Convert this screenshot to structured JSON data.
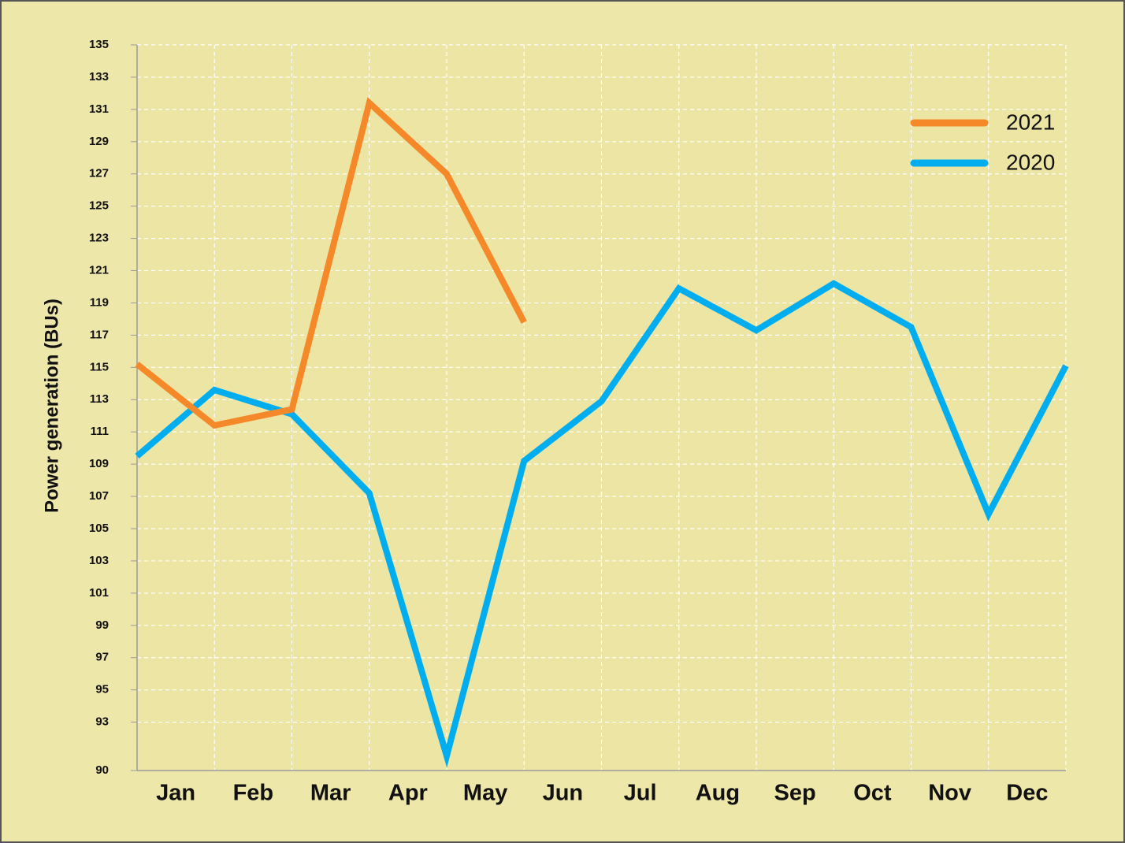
{
  "chart_data": {
    "type": "line",
    "y_label": "Power generation (BUs)",
    "x": [
      0,
      1,
      2,
      3,
      4,
      5,
      6,
      7,
      8,
      9,
      10,
      11,
      12
    ],
    "xlim": [
      0,
      12
    ],
    "xticks": [
      {
        "value": 0.5,
        "label": "Jan"
      },
      {
        "value": 1.5,
        "label": "Feb"
      },
      {
        "value": 2.5,
        "label": "Mar"
      },
      {
        "value": 3.5,
        "label": "Apr"
      },
      {
        "value": 4.5,
        "label": "May"
      },
      {
        "value": 5.5,
        "label": "Jun"
      },
      {
        "value": 6.5,
        "label": "Jul"
      },
      {
        "value": 7.5,
        "label": "Aug"
      },
      {
        "value": 8.5,
        "label": "Sep"
      },
      {
        "value": 9.5,
        "label": "Oct"
      },
      {
        "value": 10.5,
        "label": "Nov"
      },
      {
        "value": 11.5,
        "label": "Dec"
      }
    ],
    "ylim": [
      90,
      135
    ],
    "yticks": [
      90,
      93,
      95,
      97,
      99,
      101,
      103,
      105,
      107,
      109,
      111,
      113,
      115,
      117,
      119,
      121,
      123,
      125,
      127,
      129,
      131,
      133,
      135
    ],
    "grid": true,
    "legend": "upper right",
    "series": [
      {
        "name": "2021",
        "color": "#f5892a",
        "values": [
          115.2,
          111.4,
          112.4,
          131.4,
          127.0,
          117.8,
          null,
          null,
          null,
          null,
          null,
          null,
          null
        ]
      },
      {
        "name": "2020",
        "color": "#00aeef",
        "values": [
          109.5,
          113.6,
          112.1,
          107.2,
          90.9,
          109.2,
          112.9,
          119.9,
          117.3,
          120.2,
          117.5,
          105.9,
          115.1
        ]
      }
    ]
  }
}
